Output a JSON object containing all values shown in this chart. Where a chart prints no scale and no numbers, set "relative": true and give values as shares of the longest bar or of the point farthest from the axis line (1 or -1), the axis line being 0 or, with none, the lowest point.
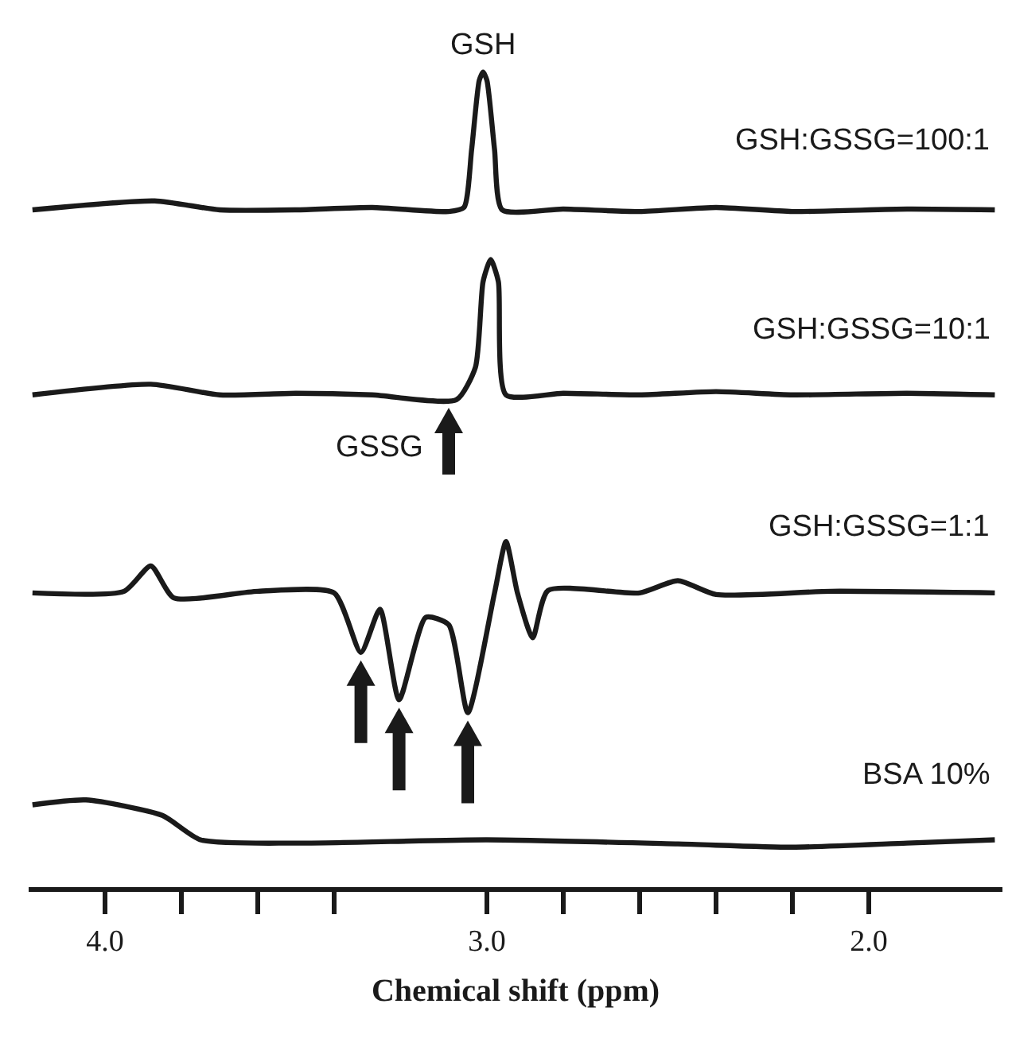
{
  "chart_data": {
    "type": "line",
    "relative": true,
    "xlabel": "Chemical shift (ppm)",
    "xlim": [
      4.2,
      1.65
    ],
    "xticks": [
      {
        "value": 4.0,
        "label": "4.0"
      },
      {
        "value": 3.8,
        "label": null
      },
      {
        "value": 3.6,
        "label": null
      },
      {
        "value": 3.4,
        "label": null
      },
      {
        "value": 3.0,
        "label": "3.0"
      },
      {
        "value": 2.8,
        "label": null
      },
      {
        "value": 2.6,
        "label": null
      },
      {
        "value": 2.4,
        "label": null
      },
      {
        "value": 2.2,
        "label": null
      },
      {
        "value": 2.0,
        "label": "2.0"
      }
    ],
    "grid": false,
    "legend": false,
    "marker": "none",
    "line_style": "solid",
    "tick_labels": "x",
    "series": [
      {
        "name": "GSH:GSSG=100:1",
        "color": "#1a1a1a",
        "x": [
          4.19,
          3.87,
          3.7,
          3.5,
          3.3,
          3.1,
          3.06,
          3.04,
          3.02,
          3.01,
          3.0,
          2.98,
          2.96,
          2.8,
          2.6,
          2.4,
          2.2,
          1.9,
          1.67
        ],
        "values": [
          0.831,
          0.842,
          0.831,
          0.831,
          0.834,
          0.829,
          0.834,
          0.905,
          0.99,
          1.0,
          0.99,
          0.905,
          0.831,
          0.832,
          0.829,
          0.834,
          0.829,
          0.832,
          0.831
        ]
      },
      {
        "name": "GSH:GSSG=10:1",
        "color": "#1a1a1a",
        "x": [
          4.19,
          3.88,
          3.7,
          3.5,
          3.3,
          3.08,
          3.03,
          3.01,
          2.99,
          2.97,
          2.95,
          2.8,
          2.6,
          2.4,
          2.2,
          1.9,
          1.67
        ],
        "values": [
          0.604,
          0.617,
          0.604,
          0.606,
          0.604,
          0.598,
          0.638,
          0.743,
          0.77,
          0.743,
          0.604,
          0.606,
          0.604,
          0.608,
          0.604,
          0.606,
          0.604
        ]
      },
      {
        "name": "GSH:GSSG=1:1",
        "color": "#1a1a1a",
        "x": [
          4.19,
          3.95,
          3.88,
          3.82,
          3.6,
          3.4,
          3.33,
          3.28,
          3.23,
          3.16,
          3.1,
          3.05,
          2.98,
          2.95,
          2.92,
          2.88,
          2.84,
          2.6,
          2.5,
          2.4,
          2.1,
          1.67
        ],
        "values": [
          0.361,
          0.363,
          0.394,
          0.355,
          0.363,
          0.361,
          0.288,
          0.341,
          0.23,
          0.331,
          0.322,
          0.214,
          0.361,
          0.424,
          0.361,
          0.306,
          0.364,
          0.361,
          0.376,
          0.359,
          0.363,
          0.361
        ]
      },
      {
        "name": "BSA 10%",
        "color": "#1a1a1a",
        "x": [
          4.19,
          4.05,
          3.85,
          3.75,
          3.5,
          3.0,
          2.5,
          2.2,
          1.9,
          1.67
        ],
        "values": [
          0.101,
          0.107,
          0.088,
          0.058,
          0.054,
          0.058,
          0.053,
          0.049,
          0.054,
          0.058
        ]
      }
    ],
    "annotations": [
      {
        "text": "GSH",
        "x": 3.01,
        "y": 1.0
      },
      {
        "text": "GSSG",
        "x": 3.1,
        "y": 0.598
      }
    ]
  }
}
